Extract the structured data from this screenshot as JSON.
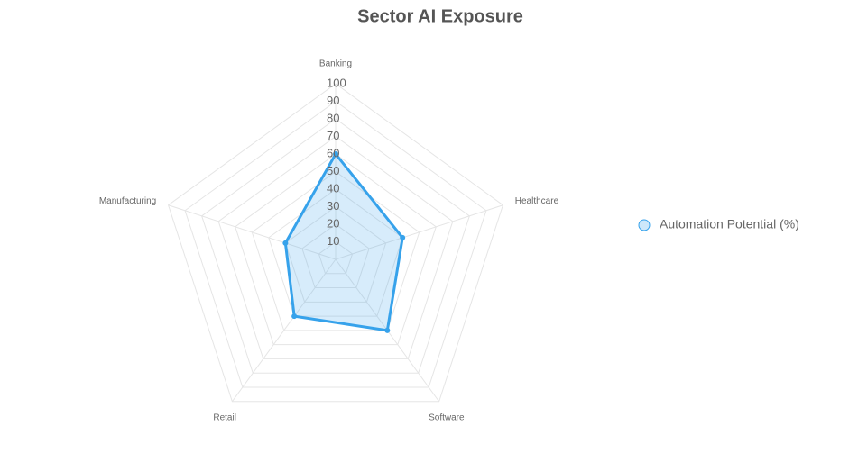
{
  "chart_data": {
    "type": "radar",
    "title": "Sector AI Exposure",
    "categories": [
      "Banking",
      "Healthcare",
      "Software",
      "Retail",
      "Manufacturing"
    ],
    "series": [
      {
        "name": "Automation Potential (%)",
        "color": "#36a2eb",
        "values": [
          60,
          40,
          50,
          40,
          30
        ]
      }
    ],
    "rlim": [
      0,
      100
    ],
    "rticks": [
      10,
      20,
      30,
      40,
      50,
      60,
      70,
      80,
      90,
      100
    ],
    "grid": true,
    "legend": "right"
  }
}
